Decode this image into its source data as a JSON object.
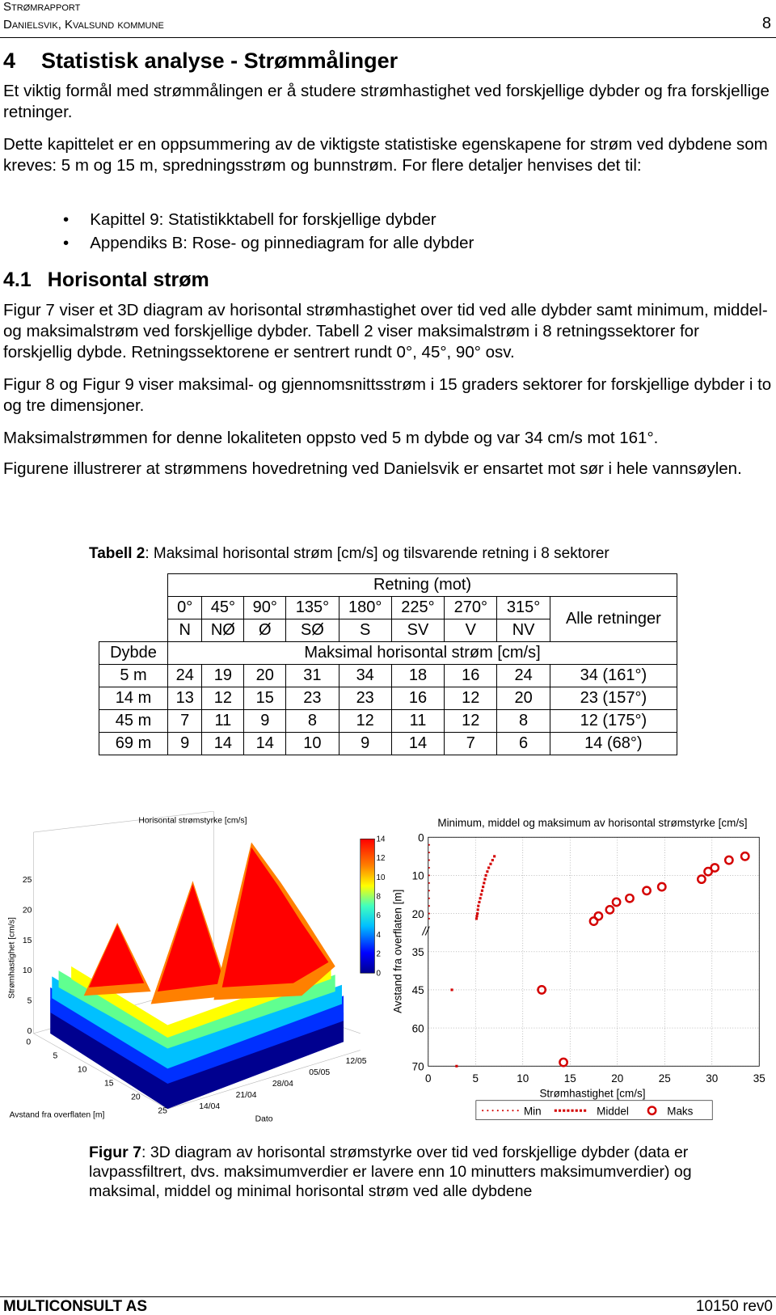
{
  "header": {
    "title": "Strømrapport",
    "subtitle": "Danielsvik, Kvalsund kommune",
    "page_number": "8"
  },
  "section": {
    "number": "4",
    "title": "Statistisk analyse - Strømmålinger",
    "paragraphs": [
      "Et viktig formål med strømmålingen er å studere strømhastighet ved forskjellige dybder og fra forskjellige retninger.",
      "Dette kapittelet er en oppsummering av de viktigste statistiske egenskapene for strøm ved dybdene som kreves: 5 m og 15 m, spredningsstrøm og bunnstrøm. For flere detaljer henvises det til:"
    ],
    "bullets": [
      "Kapittel 9: Statistikktabell for forskjellige dybder",
      "Appendiks B: Rose- og pinnediagram for alle dybder"
    ]
  },
  "subsection": {
    "number": "4.1",
    "title": "Horisontal strøm",
    "paragraphs": [
      "Figur 7 viser et 3D diagram av horisontal strømhastighet over tid ved alle dybder samt minimum, middel- og maksimalstrøm ved forskjellige dybder. Tabell 2 viser maksimalstrøm i 8 retningssektorer for forskjellig dybde. Retningssektorene er sentrert rundt 0°, 45°, 90° osv.",
      "Figur 8 og Figur 9 viser maksimal- og gjennomsnittsstrøm i 15 graders sektorer for forskjellige dybder i to og tre dimensjoner.",
      "Maksimalstrømmen for denne lokaliteten oppsto ved 5 m dybde og var 34 cm/s mot 161°.",
      "Figurene illustrerer at strømmens hovedretning ved Danielsvik er ensartet mot sør i hele vannsøylen."
    ]
  },
  "table": {
    "caption_label": "Tabell 2",
    "caption_text": ": Maksimal horisontal strøm [cm/s] og tilsvarende retning i 8 sektorer",
    "direction_header": "Retning (mot)",
    "directions": [
      "0°",
      "45°",
      "90°",
      "135°",
      "180°",
      "225°",
      "270°",
      "315°"
    ],
    "compass": [
      "N",
      "NØ",
      "Ø",
      "SØ",
      "S",
      "SV",
      "V",
      "NV"
    ],
    "all_directions": "Alle retninger",
    "depth_header": "Dybde",
    "value_header": "Maksimal horisontal strøm [cm/s]",
    "rows": [
      {
        "depth": "5 m",
        "values": [
          24,
          19,
          20,
          31,
          34,
          18,
          16,
          24
        ],
        "all": "34 (161°)"
      },
      {
        "depth": "14 m",
        "values": [
          13,
          12,
          15,
          23,
          23,
          16,
          12,
          20
        ],
        "all": "23 (157°)"
      },
      {
        "depth": "45 m",
        "values": [
          7,
          11,
          9,
          8,
          12,
          11,
          12,
          8
        ],
        "all": "12 (175°)"
      },
      {
        "depth": "69 m",
        "values": [
          9,
          14,
          14,
          10,
          9,
          14,
          7,
          6
        ],
        "all": "14 (68°)"
      }
    ]
  },
  "figure": {
    "left_chart": {
      "title": "Horisontal strømstyrke [cm/s]",
      "zlabel": "Strømhastighet [cm/s]",
      "depth_label": "Avstand fra overflaten [m]",
      "date_label": "Dato",
      "zticks": [
        0,
        5,
        10,
        15,
        20,
        25
      ],
      "depth_ticks": [
        0,
        5,
        10,
        15,
        20,
        25
      ],
      "date_ticks": [
        "14/04",
        "21/04",
        "28/04",
        "05/05",
        "12/05"
      ],
      "colorbar_ticks": [
        0,
        2,
        4,
        6,
        8,
        10,
        12,
        14
      ]
    },
    "right_chart": {
      "type": "scatter",
      "title": "Minimum, middel og maksimum av horisontal strømstyrke [cm/s]",
      "xlabel": "Strømhastighet [cm/s]",
      "ylabel": "Avstand fra overflaten [m]",
      "xlim": [
        0,
        35
      ],
      "xticks": [
        0,
        5,
        10,
        15,
        20,
        25,
        30,
        35
      ],
      "ylim": [
        0,
        70
      ],
      "yticks": [
        0,
        10,
        20,
        35,
        45,
        60,
        70
      ],
      "grid": true,
      "series": [
        {
          "name": "Min",
          "color": "#d40000",
          "marker": "dot",
          "x": [
            0.1,
            0.1,
            0.1,
            0.1,
            0.1,
            0.1,
            0.1,
            0.1,
            0.1,
            0.1,
            0.1
          ],
          "y": [
            2,
            4,
            6,
            8,
            10,
            12,
            14,
            16,
            18,
            20,
            22
          ]
        },
        {
          "name": "Middel",
          "color": "#d40000",
          "marker": "square",
          "x": [
            7.0,
            6.8,
            6.6,
            6.4,
            6.25,
            6.1,
            6.0,
            5.9,
            5.8,
            5.7,
            5.6,
            5.5,
            5.4,
            5.3,
            5.25,
            5.2,
            5.15,
            5.1,
            2.5,
            3.0
          ],
          "y": [
            5,
            6,
            7,
            8,
            9,
            10,
            11,
            12,
            13,
            14,
            15,
            16,
            17,
            18,
            19,
            20,
            21,
            22,
            45,
            70
          ]
        },
        {
          "name": "Maks",
          "color": "#d40000",
          "marker": "circle",
          "x": [
            33.5,
            31.8,
            30.3,
            29.6,
            28.9,
            24.7,
            23.1,
            21.3,
            19.9,
            19.2,
            18,
            17.5,
            12,
            14.3
          ],
          "y": [
            5,
            6,
            8,
            9,
            11,
            13,
            14,
            16,
            17,
            19,
            21,
            23,
            45,
            69
          ]
        }
      ]
    },
    "caption_label": "Figur 7",
    "caption_text": ": 3D diagram av horisontal strømstyrke over tid ved forskjellige dybder (data er lavpassfiltrert, dvs. maksimumverdier er lavere enn 10 minutters maksimumverdier) og maksimal, middel og minimal horisontal strøm ved alle dybdene"
  },
  "footer": {
    "company": "MULTICONSULT AS",
    "document": "10150 rev0"
  }
}
